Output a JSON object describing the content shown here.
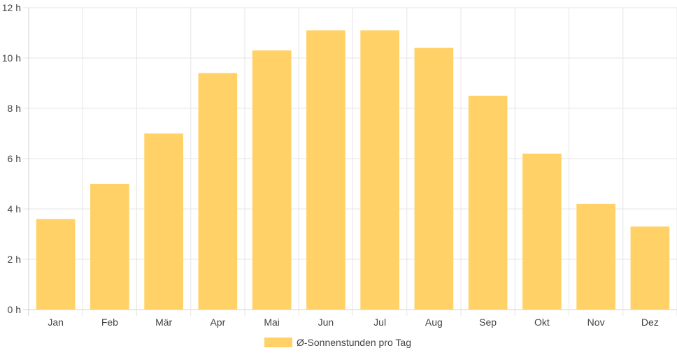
{
  "chart_data": {
    "type": "bar",
    "categories": [
      "Jan",
      "Feb",
      "Mär",
      "Apr",
      "Mai",
      "Jun",
      "Jul",
      "Aug",
      "Sep",
      "Okt",
      "Nov",
      "Dez"
    ],
    "series": [
      {
        "name": "Ø-Sonnenstunden pro Tag",
        "values": [
          3.6,
          5.0,
          7.0,
          9.4,
          10.3,
          11.1,
          11.1,
          10.4,
          8.5,
          6.2,
          4.2,
          3.3
        ],
        "color": "#ffd166"
      }
    ],
    "yticks": [
      "0 h",
      "2 h",
      "4 h",
      "6 h",
      "8 h",
      "10 h",
      "12 h"
    ],
    "ylim": [
      0,
      12
    ],
    "grid": true,
    "legend_position": "bottom"
  }
}
